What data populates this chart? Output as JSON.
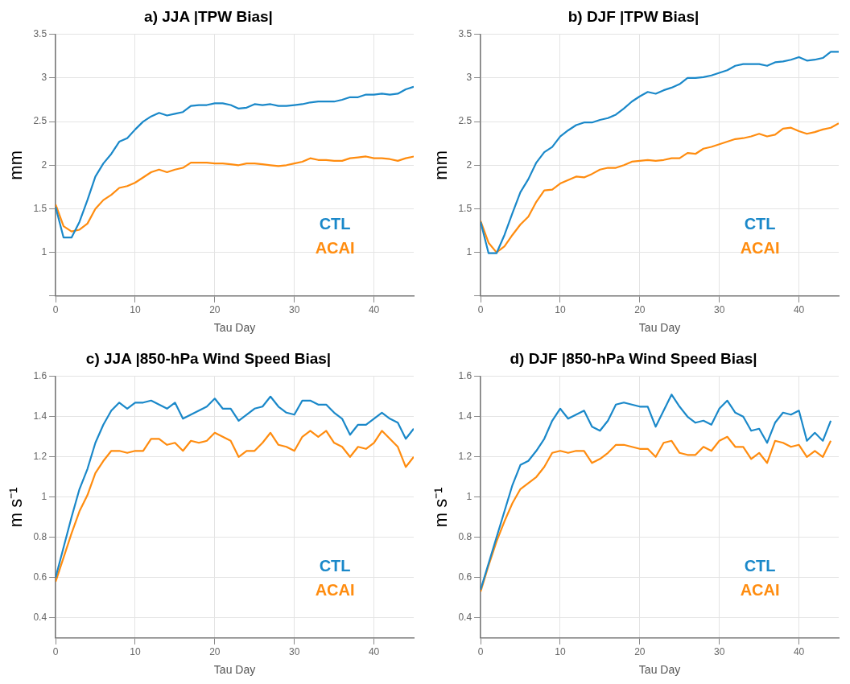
{
  "chart_data": [
    {
      "type": "line",
      "title": "a) JJA |TPW Bias|",
      "xlabel": "Tau Day",
      "ylabel": "mm",
      "xlim": [
        0,
        45
      ],
      "xticks": [
        0,
        10,
        20,
        30,
        40
      ],
      "ylim": [
        0.5,
        3.5
      ],
      "yticks": [
        {
          "value": 0.5,
          "label": null
        },
        1,
        1.5,
        2,
        2.5,
        3,
        3.5
      ],
      "grid": true,
      "legend": "bottom right",
      "x": [
        0,
        1,
        2,
        3,
        4,
        5,
        6,
        7,
        8,
        9,
        10,
        11,
        12,
        13,
        14,
        15,
        16,
        17,
        18,
        19,
        20,
        21,
        22,
        23,
        24,
        25,
        26,
        27,
        28,
        29,
        30,
        31,
        32,
        33,
        34,
        35,
        36,
        37,
        38,
        39,
        40,
        41,
        42,
        43,
        44,
        45
      ],
      "series": [
        {
          "name": "CTL",
          "color": "#1a88c9",
          "values": [
            1.52,
            1.17,
            1.17,
            1.35,
            1.6,
            1.87,
            2.02,
            2.13,
            2.27,
            2.31,
            2.41,
            2.5,
            2.56,
            2.6,
            2.57,
            2.59,
            2.61,
            2.68,
            2.69,
            2.69,
            2.71,
            2.71,
            2.69,
            2.65,
            2.66,
            2.7,
            2.69,
            2.7,
            2.68,
            2.68,
            2.69,
            2.7,
            2.72,
            2.73,
            2.73,
            2.73,
            2.75,
            2.78,
            2.78,
            2.81,
            2.81,
            2.82,
            2.81,
            2.82,
            2.87,
            2.9
          ]
        },
        {
          "name": "ACAI",
          "color": "#ff8c0f",
          "values": [
            1.55,
            1.3,
            1.24,
            1.26,
            1.33,
            1.5,
            1.6,
            1.66,
            1.74,
            1.76,
            1.8,
            1.86,
            1.92,
            1.95,
            1.92,
            1.95,
            1.97,
            2.03,
            2.03,
            2.03,
            2.02,
            2.02,
            2.01,
            2.0,
            2.02,
            2.02,
            2.01,
            2.0,
            1.99,
            2.0,
            2.02,
            2.04,
            2.08,
            2.06,
            2.06,
            2.05,
            2.05,
            2.08,
            2.09,
            2.1,
            2.08,
            2.08,
            2.07,
            2.05,
            2.08,
            2.1
          ]
        }
      ]
    },
    {
      "type": "line",
      "title": "b) DJF |TPW Bias|",
      "xlabel": "Tau Day",
      "ylabel": "mm",
      "xlim": [
        0,
        45
      ],
      "xticks": [
        0,
        10,
        20,
        30,
        40
      ],
      "ylim": [
        0.5,
        3.5
      ],
      "yticks": [
        {
          "value": 0.5,
          "label": null
        },
        1,
        1.5,
        2,
        2.5,
        3,
        3.5
      ],
      "grid": true,
      "legend": "bottom right",
      "x": [
        0,
        1,
        2,
        3,
        4,
        5,
        6,
        7,
        8,
        9,
        10,
        11,
        12,
        13,
        14,
        15,
        16,
        17,
        18,
        19,
        20,
        21,
        22,
        23,
        24,
        25,
        26,
        27,
        28,
        29,
        30,
        31,
        32,
        33,
        34,
        35,
        36,
        37,
        38,
        39,
        40,
        41,
        42,
        43,
        44,
        45
      ],
      "series": [
        {
          "name": "CTL",
          "color": "#1a88c9",
          "values": [
            1.35,
            0.99,
            0.99,
            1.2,
            1.45,
            1.69,
            1.84,
            2.03,
            2.15,
            2.21,
            2.33,
            2.4,
            2.46,
            2.49,
            2.49,
            2.52,
            2.54,
            2.58,
            2.65,
            2.73,
            2.79,
            2.84,
            2.82,
            2.86,
            2.89,
            2.93,
            3.0,
            3.0,
            3.01,
            3.03,
            3.06,
            3.09,
            3.14,
            3.16,
            3.16,
            3.16,
            3.14,
            3.18,
            3.19,
            3.21,
            3.24,
            3.2,
            3.21,
            3.23,
            3.3,
            3.3
          ]
        },
        {
          "name": "ACAI",
          "color": "#ff8c0f",
          "values": [
            1.36,
            1.11,
            1.0,
            1.07,
            1.2,
            1.32,
            1.41,
            1.58,
            1.71,
            1.72,
            1.79,
            1.83,
            1.87,
            1.86,
            1.9,
            1.95,
            1.97,
            1.97,
            2.0,
            2.04,
            2.05,
            2.06,
            2.05,
            2.06,
            2.08,
            2.08,
            2.14,
            2.13,
            2.19,
            2.21,
            2.24,
            2.27,
            2.3,
            2.31,
            2.33,
            2.36,
            2.33,
            2.35,
            2.42,
            2.43,
            2.39,
            2.36,
            2.38,
            2.41,
            2.43,
            2.48
          ]
        }
      ]
    },
    {
      "type": "line",
      "title": "c) JJA |850-hPa Wind Speed Bias|",
      "xlabel": "Tau Day",
      "ylabel": "m s⁻¹",
      "xlim": [
        0,
        45
      ],
      "xticks": [
        0,
        10,
        20,
        30,
        40
      ],
      "ylim": [
        0.3,
        1.6
      ],
      "yticks": [
        0.4,
        0.6,
        0.8,
        1,
        1.2,
        1.4,
        1.6
      ],
      "grid": true,
      "legend": "bottom right",
      "x": [
        0,
        1,
        2,
        3,
        4,
        5,
        6,
        7,
        8,
        9,
        10,
        11,
        12,
        13,
        14,
        15,
        16,
        17,
        18,
        19,
        20,
        21,
        22,
        23,
        24,
        25,
        26,
        27,
        28,
        29,
        30,
        31,
        32,
        33,
        34,
        35,
        36,
        37,
        38,
        39,
        40,
        41,
        42,
        43,
        44,
        45
      ],
      "series": [
        {
          "name": "CTL",
          "color": "#1a88c9",
          "values": [
            0.6,
            0.75,
            0.9,
            1.04,
            1.14,
            1.27,
            1.36,
            1.43,
            1.47,
            1.44,
            1.47,
            1.47,
            1.48,
            1.46,
            1.44,
            1.47,
            1.39,
            1.41,
            1.43,
            1.45,
            1.49,
            1.44,
            1.44,
            1.38,
            1.41,
            1.44,
            1.45,
            1.5,
            1.45,
            1.42,
            1.41,
            1.48,
            1.48,
            1.46,
            1.46,
            1.42,
            1.39,
            1.31,
            1.36,
            1.36,
            1.39,
            1.42,
            1.39,
            1.37,
            1.29,
            1.34
          ]
        },
        {
          "name": "ACAI",
          "color": "#ff8c0f",
          "values": [
            0.58,
            0.7,
            0.82,
            0.93,
            1.01,
            1.12,
            1.18,
            1.23,
            1.23,
            1.22,
            1.23,
            1.23,
            1.29,
            1.29,
            1.26,
            1.27,
            1.23,
            1.28,
            1.27,
            1.28,
            1.32,
            1.3,
            1.28,
            1.2,
            1.23,
            1.23,
            1.27,
            1.32,
            1.26,
            1.25,
            1.23,
            1.3,
            1.33,
            1.3,
            1.33,
            1.27,
            1.25,
            1.2,
            1.25,
            1.24,
            1.27,
            1.33,
            1.29,
            1.25,
            1.15,
            1.2
          ]
        }
      ]
    },
    {
      "type": "line",
      "title": "d) DJF |850-hPa Wind Speed Bias|",
      "xlabel": "Tau Day",
      "ylabel": "m s⁻¹",
      "xlim": [
        0,
        45
      ],
      "xticks": [
        0,
        10,
        20,
        30,
        40
      ],
      "ylim": [
        0.3,
        1.6
      ],
      "yticks": [
        0.4,
        0.6,
        0.8,
        1,
        1.2,
        1.4,
        1.6
      ],
      "grid": true,
      "legend": "bottom right",
      "x": [
        0,
        1,
        2,
        3,
        4,
        5,
        6,
        7,
        8,
        9,
        10,
        11,
        12,
        13,
        14,
        15,
        16,
        17,
        18,
        19,
        20,
        21,
        22,
        23,
        24,
        25,
        26,
        27,
        28,
        29,
        30,
        31,
        32,
        33,
        34,
        35,
        36,
        37,
        38,
        39,
        40,
        41,
        42,
        43,
        44
      ],
      "series": [
        {
          "name": "CTL",
          "color": "#1a88c9",
          "values": [
            0.54,
            0.67,
            0.8,
            0.93,
            1.06,
            1.16,
            1.18,
            1.23,
            1.29,
            1.38,
            1.44,
            1.39,
            1.41,
            1.43,
            1.35,
            1.33,
            1.38,
            1.46,
            1.47,
            1.46,
            1.45,
            1.45,
            1.35,
            1.43,
            1.51,
            1.45,
            1.4,
            1.37,
            1.38,
            1.36,
            1.44,
            1.48,
            1.42,
            1.4,
            1.33,
            1.34,
            1.27,
            1.37,
            1.42,
            1.41,
            1.43,
            1.28,
            1.32,
            1.28,
            1.38
          ]
        },
        {
          "name": "ACAI",
          "color": "#ff8c0f",
          "values": [
            0.53,
            0.66,
            0.78,
            0.88,
            0.97,
            1.04,
            1.07,
            1.1,
            1.15,
            1.22,
            1.23,
            1.22,
            1.23,
            1.23,
            1.17,
            1.19,
            1.22,
            1.26,
            1.26,
            1.25,
            1.24,
            1.24,
            1.2,
            1.27,
            1.28,
            1.22,
            1.21,
            1.21,
            1.25,
            1.23,
            1.28,
            1.3,
            1.25,
            1.25,
            1.19,
            1.22,
            1.17,
            1.28,
            1.27,
            1.25,
            1.26,
            1.2,
            1.23,
            1.2,
            1.28
          ]
        }
      ]
    }
  ]
}
